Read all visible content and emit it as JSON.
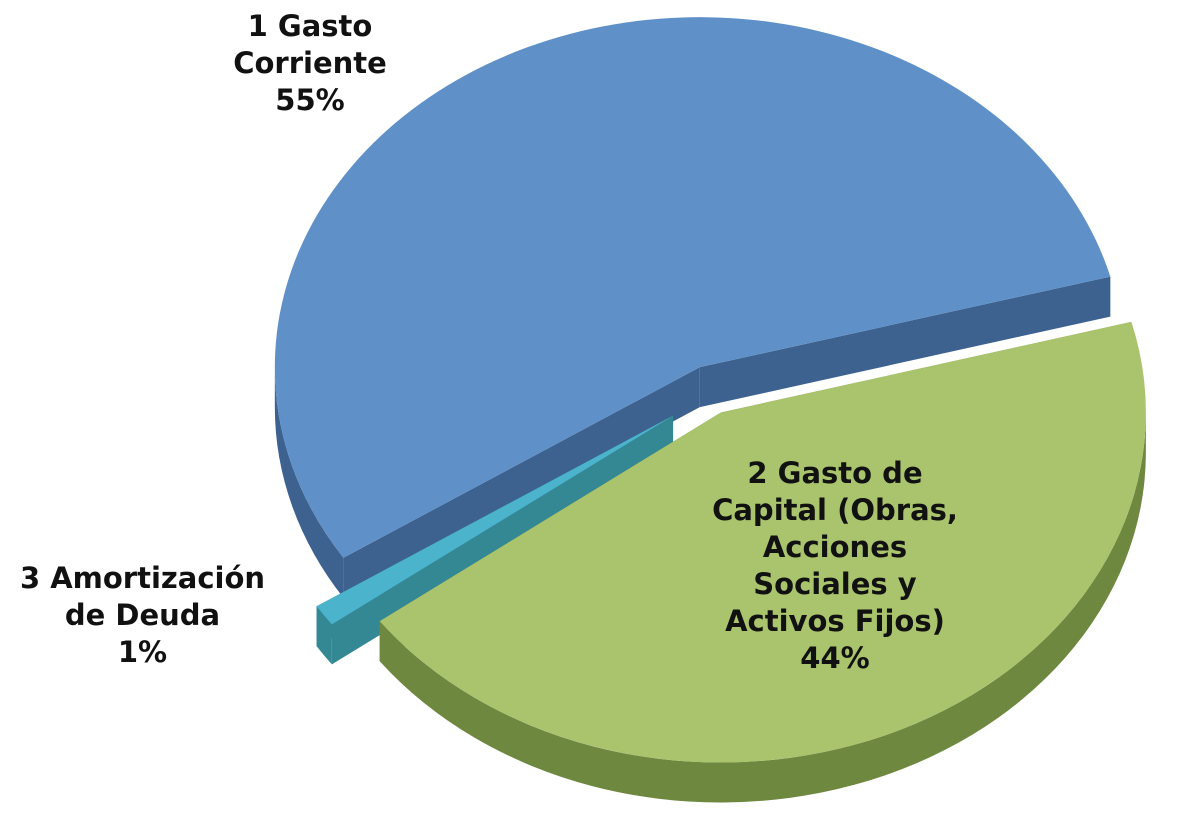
{
  "chart_data": {
    "type": "pie3d",
    "categories": [
      "1 Gasto Corriente",
      "2 Gasto de Capital (Obras, Acciones Sociales y Activos Fijos)",
      "3 Amortización de Deuda"
    ],
    "values": [
      55,
      44,
      1
    ],
    "value_labels": [
      "55%",
      "44%",
      "1%"
    ],
    "colors": [
      "#5f91c8",
      "#a9c46c",
      "#4bb3cc"
    ],
    "side_colors": [
      "#3d6290",
      "#6e8840",
      "#338894"
    ]
  }
}
